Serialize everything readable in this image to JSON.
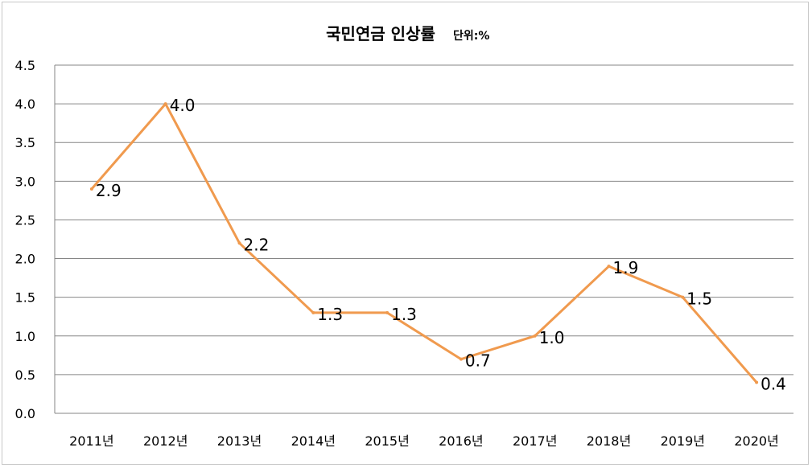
{
  "chart_data": {
    "type": "line",
    "title": "국민연금 인상률",
    "subtitle": "단위:%",
    "categories": [
      "2011년",
      "2012년",
      "2013년",
      "2014년",
      "2015년",
      "2016년",
      "2017년",
      "2018년",
      "2019년",
      "2020년"
    ],
    "series": [
      {
        "values": [
          2.9,
          4.0,
          2.2,
          1.3,
          1.3,
          0.7,
          1.0,
          1.9,
          1.5,
          0.4
        ],
        "color": "#F09A4E"
      }
    ],
    "data_labels": [
      "2.9",
      "4.0",
      "2.2",
      "1.3",
      "1.3",
      "0.7",
      "1.0",
      "1.9",
      "1.5",
      "0.4"
    ],
    "y_ticks": [
      "0.0",
      "0.5",
      "1.0",
      "1.5",
      "2.0",
      "2.5",
      "3.0",
      "3.5",
      "4.0",
      "4.5"
    ],
    "ylim": [
      0,
      4.5
    ],
    "ystep": 0.5,
    "grid": true,
    "legend": "none",
    "xlabel": "",
    "ylabel": "",
    "gridline_color": "#868686",
    "text_color": "#000000"
  }
}
